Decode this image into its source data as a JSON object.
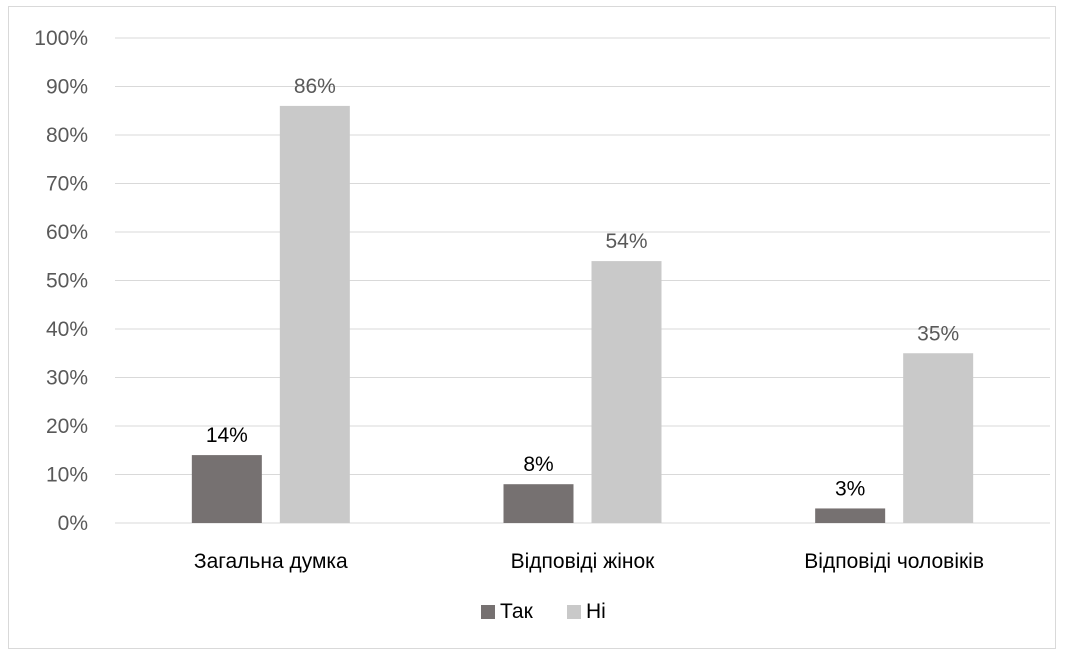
{
  "chart_data": {
    "type": "bar",
    "categories": [
      "Загальна думка",
      "Відповіді жінок",
      "Відповіді чоловіків"
    ],
    "series": [
      {
        "name": "Так",
        "values": [
          14,
          8,
          3
        ],
        "labels": [
          "14%",
          "8%",
          "3%"
        ],
        "color": "#767171",
        "label_color": "#000000"
      },
      {
        "name": "Ні",
        "values": [
          86,
          54,
          35
        ],
        "labels": [
          "86%",
          "54%",
          "35%"
        ],
        "color": "#c9c9c9",
        "label_color": "#595959"
      }
    ],
    "ylim": [
      0,
      100
    ],
    "yticks": [
      0,
      10,
      20,
      30,
      40,
      50,
      60,
      70,
      80,
      90,
      100
    ],
    "ytick_labels": [
      "0%",
      "10%",
      "20%",
      "30%",
      "40%",
      "50%",
      "60%",
      "70%",
      "80%",
      "90%",
      "100%"
    ],
    "grid": true,
    "legend_position": "bottom",
    "gridline_color": "#d9d9d9",
    "title": "",
    "xlabel": "",
    "ylabel": ""
  }
}
